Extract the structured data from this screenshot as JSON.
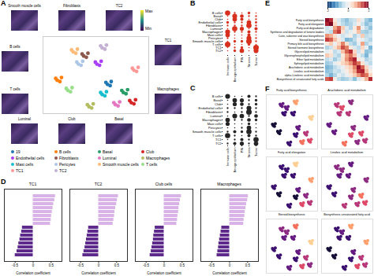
{
  "chart_data": [
    {
      "type": "scatter",
      "panel": "A",
      "tick_labels": false,
      "legend": "bottom",
      "xlim": [
        -8,
        12
      ],
      "ylim": [
        -9,
        10
      ],
      "annotations": [
        "Smooth muscle cells",
        "Fibroblasts",
        "TC2",
        "B cells",
        "T cells",
        "TC1",
        "Macrophages",
        "Luminal",
        "Club",
        "Basal"
      ],
      "colorbar": {
        "labels": [
          "Max",
          "Min"
        ]
      },
      "series": [
        {
          "name": "19",
          "color": "#1f77b4",
          "x": [
            4.9,
            3.9,
            4.7,
            4.2
          ],
          "y": [
            -1.1,
            -1.3,
            -2.1,
            -1.8
          ]
        },
        {
          "name": "B cells",
          "color": "#ff7f0e",
          "x": [
            -4.5,
            -5.6,
            -4.8,
            -5.3
          ],
          "y": [
            -0.1,
            -0.3,
            -1.1,
            -0.8
          ]
        },
        {
          "name": "Basal",
          "color": "#279e68",
          "x": [
            8.0,
            6.9,
            7.7,
            7.2
          ],
          "y": [
            -3.1,
            -3.3,
            -4.1,
            -3.8
          ]
        },
        {
          "name": "Club",
          "color": "#d62728",
          "x": [
            9.5,
            8.4,
            9.2,
            8.7
          ],
          "y": [
            -5.6,
            -5.8,
            -6.6,
            -6.3
          ]
        },
        {
          "name": "Endothelial cells",
          "color": "#aa40fc",
          "x": [
            3.0,
            1.9,
            2.7,
            2.2
          ],
          "y": [
            3.9,
            3.7,
            2.9,
            3.2
          ]
        },
        {
          "name": "Fibroblasts",
          "color": "#8c564b",
          "x": [
            0.5,
            -0.6,
            0.2,
            -0.3
          ],
          "y": [
            5.9,
            5.7,
            4.9,
            5.2
          ]
        },
        {
          "name": "Luminal",
          "color": "#e377c2",
          "x": [
            6.5,
            5.4,
            6.2,
            5.7
          ],
          "y": [
            -6.1,
            -6.3,
            -7.1,
            -6.8
          ]
        },
        {
          "name": "Macrophages",
          "color": "#b5bd61",
          "x": [
            1.5,
            0.4,
            1.2,
            0.7
          ],
          "y": [
            -6.6,
            -6.8,
            -7.6,
            -7.3
          ]
        },
        {
          "name": "Mast cells",
          "color": "#17becf",
          "x": [
            4.0,
            2.9,
            3.7,
            3.2
          ],
          "y": [
            -3.6,
            -3.8,
            -4.6,
            -4.3
          ]
        },
        {
          "name": "Pericytes",
          "color": "#aec7e8",
          "x": [
            -0.5,
            -1.6,
            -0.8,
            -1.3
          ],
          "y": [
            3.9,
            3.7,
            2.9,
            3.2
          ]
        },
        {
          "name": "Smooth muscle cells",
          "color": "#ffbb78",
          "x": [
            -1.5,
            -2.6,
            -1.8,
            -2.3
          ],
          "y": [
            6.9,
            6.7,
            5.9,
            6.2
          ]
        },
        {
          "name": "T cells",
          "color": "#98df8a",
          "x": [
            -2.5,
            -3.6,
            -2.8,
            -3.3
          ],
          "y": [
            -2.6,
            -2.8,
            -3.6,
            -3.3
          ]
        },
        {
          "name": "TC1",
          "color": "#ff9896",
          "x": [
            10.0,
            8.9,
            9.7,
            9.2
          ],
          "y": [
            2.4,
            2.2,
            1.4,
            1.7
          ]
        },
        {
          "name": "TC2",
          "color": "#c5b0d5",
          "x": [
            4.0,
            2.9,
            3.7,
            3.2
          ],
          "y": [
            7.9,
            7.7,
            6.9,
            7.2
          ]
        }
      ]
    },
    {
      "type": "dot",
      "panel": "B",
      "color": "#d7301f",
      "categories": [
        "Immune cells",
        "Benign epithelium",
        "PIN",
        "Stroma",
        "Tumor"
      ],
      "rows": [
        "B cells",
        "Basal",
        "Club",
        "Endothelial cells",
        "Fibroblasts",
        "Luminal",
        "Macrophages",
        "Mast cells",
        "Pericytes",
        "Smooth muscle cells",
        "T cells",
        "TC1",
        "TC2"
      ],
      "values": [
        [
          0.8,
          0.1,
          0.05,
          0.2,
          0.05
        ],
        [
          0.05,
          0.7,
          0.4,
          0.1,
          0.1
        ],
        [
          0.05,
          0.6,
          0.3,
          0.05,
          0.1
        ],
        [
          0.2,
          0.1,
          0.1,
          0.6,
          0.15
        ],
        [
          0.1,
          0.1,
          0.1,
          0.8,
          0.1
        ],
        [
          0.05,
          0.8,
          0.5,
          0.05,
          0.3
        ],
        [
          0.7,
          0.1,
          0.1,
          0.3,
          0.1
        ],
        [
          0.6,
          0.05,
          0.05,
          0.3,
          0.05
        ],
        [
          0.1,
          0.05,
          0.05,
          0.7,
          0.1
        ],
        [
          0.05,
          0.2,
          0.2,
          0.9,
          0.1
        ],
        [
          0.9,
          0.05,
          0.05,
          0.2,
          0.05
        ],
        [
          0.05,
          0.1,
          0.2,
          0.05,
          0.9
        ],
        [
          0.05,
          0.2,
          0.6,
          0.05,
          0.7
        ]
      ]
    },
    {
      "type": "dot",
      "panel": "C",
      "color": "#252525",
      "categories": [
        "Immune cells",
        "Benign epithelium",
        "PIN",
        "Stroma",
        "Tumor"
      ],
      "rows": [
        "B cells",
        "Basal",
        "Club",
        "Endothelial cells",
        "Fibroblasts",
        "Luminal",
        "Macrophages",
        "Mast cells",
        "Pericytes",
        "Smooth muscle cells",
        "T cells",
        "TC1",
        "TC2"
      ],
      "values": [
        [
          0.7,
          0.05,
          0.05,
          0.3,
          0.1
        ],
        [
          0.05,
          0.6,
          0.5,
          0.1,
          0.2
        ],
        [
          0.05,
          0.5,
          0.4,
          0.1,
          0.2
        ],
        [
          0.1,
          0.1,
          0.1,
          0.7,
          0.1
        ],
        [
          0.1,
          0.05,
          0.1,
          0.9,
          0.1
        ],
        [
          0.05,
          0.7,
          0.6,
          0.1,
          0.4
        ],
        [
          0.6,
          0.1,
          0.1,
          0.4,
          0.2
        ],
        [
          0.5,
          0.05,
          0.05,
          0.2,
          0.05
        ],
        [
          0.05,
          0.05,
          0.1,
          0.6,
          0.05
        ],
        [
          0.1,
          0.3,
          0.2,
          0.8,
          0.1
        ],
        [
          0.8,
          0.1,
          0.05,
          0.3,
          0.1
        ],
        [
          0.05,
          0.1,
          0.3,
          0.1,
          0.8
        ],
        [
          0.1,
          0.3,
          0.5,
          0.1,
          0.6
        ]
      ]
    },
    {
      "type": "bar",
      "panel": "D",
      "orientation": "horizontal",
      "title": "TC1",
      "xlabel": "Correlation coefficient",
      "xlim": [
        -0.8,
        0.8
      ],
      "xticks": [
        -0.5,
        0,
        0.5
      ],
      "categories": [
        null,
        null,
        null,
        null,
        null,
        null,
        null,
        null,
        null,
        null,
        null,
        null,
        null,
        null,
        null,
        null
      ],
      "values": [
        0.62,
        0.6,
        0.57,
        0.55,
        0.53,
        0.51,
        0.5,
        0.48,
        -0.3,
        -0.32,
        -0.35,
        -0.37,
        -0.4,
        -0.42,
        -0.45,
        -0.5
      ],
      "colors": [
        "#d9b3e8",
        "#d9b3e8",
        "#d9b3e8",
        "#d9b3e8",
        "#d9b3e8",
        "#d9b3e8",
        "#d9b3e8",
        "#d9b3e8",
        "#5e2b8c",
        "#5e2b8c",
        "#5e2b8c",
        "#5e2b8c",
        "#5e2b8c",
        "#5e2b8c",
        "#5e2b8c",
        "#5e2b8c"
      ]
    },
    {
      "type": "bar",
      "orientation": "horizontal",
      "title": "TC2",
      "xlabel": "Correlation coefficient",
      "xlim": [
        -0.8,
        0.8
      ],
      "xticks": [
        -0.5,
        0,
        0.5
      ],
      "categories": [
        null,
        null,
        null,
        null,
        null,
        null,
        null,
        null,
        null,
        null,
        null,
        null,
        null,
        null,
        null,
        null
      ],
      "values": [
        0.55,
        0.52,
        0.5,
        0.47,
        0.45,
        0.44,
        0.42,
        0.4,
        -0.28,
        -0.3,
        -0.32,
        -0.34,
        -0.36,
        -0.38,
        -0.41,
        -0.44
      ],
      "colors": [
        "#d9b3e8",
        "#d9b3e8",
        "#d9b3e8",
        "#d9b3e8",
        "#d9b3e8",
        "#d9b3e8",
        "#d9b3e8",
        "#d9b3e8",
        "#5e2b8c",
        "#5e2b8c",
        "#5e2b8c",
        "#5e2b8c",
        "#5e2b8c",
        "#5e2b8c",
        "#5e2b8c",
        "#5e2b8c"
      ]
    },
    {
      "type": "bar",
      "orientation": "horizontal",
      "title": "Club cells",
      "xlabel": "Correlation coefficient",
      "xlim": [
        -0.8,
        0.8
      ],
      "xticks": [
        -0.5,
        0,
        0.5
      ],
      "categories": [
        null,
        null,
        null,
        null,
        null,
        null,
        null,
        null,
        null,
        null,
        null,
        null,
        null,
        null,
        null,
        null
      ],
      "values": [
        0.48,
        0.45,
        0.43,
        0.41,
        0.4,
        0.38,
        0.37,
        0.35,
        -0.25,
        -0.27,
        -0.29,
        -0.3,
        -0.32,
        -0.34,
        -0.36,
        -0.39
      ],
      "colors": [
        "#d9b3e8",
        "#d9b3e8",
        "#d9b3e8",
        "#d9b3e8",
        "#d9b3e8",
        "#d9b3e8",
        "#d9b3e8",
        "#d9b3e8",
        "#5e2b8c",
        "#5e2b8c",
        "#5e2b8c",
        "#5e2b8c",
        "#5e2b8c",
        "#5e2b8c",
        "#5e2b8c",
        "#5e2b8c"
      ]
    },
    {
      "type": "bar",
      "orientation": "horizontal",
      "title": "Macrophages",
      "xlabel": "Correlation coefficient",
      "xlim": [
        -0.8,
        0.8
      ],
      "xticks": [
        -0.5,
        0,
        0.5
      ],
      "categories": [
        null,
        null,
        null,
        null,
        null,
        null,
        null,
        null,
        null,
        null,
        null,
        null,
        null,
        null,
        null,
        null
      ],
      "values": [
        0.52,
        0.5,
        0.47,
        0.45,
        0.43,
        0.42,
        0.4,
        0.39,
        -0.22,
        -0.24,
        -0.26,
        -0.28,
        -0.3,
        -0.31,
        -0.33,
        -0.35
      ],
      "colors": [
        "#d9b3e8",
        "#d9b3e8",
        "#d9b3e8",
        "#d9b3e8",
        "#d9b3e8",
        "#d9b3e8",
        "#d9b3e8",
        "#d9b3e8",
        "#5e2b8c",
        "#5e2b8c",
        "#5e2b8c",
        "#5e2b8c",
        "#5e2b8c",
        "#5e2b8c",
        "#5e2b8c",
        "#5e2b8c"
      ]
    },
    {
      "type": "heatmap",
      "panel": "E",
      "categories": [
        null,
        null,
        null,
        null,
        null,
        null,
        null,
        null,
        null,
        null,
        null,
        null
      ],
      "rows": [
        "Fatty acid biosynthesis",
        "Fatty acid elongation",
        "Fatty acid degradation",
        "Synthesis and degradation of ketone bodies",
        "Cutin, suberine and wax biosynthesis",
        "Steroid biosynthesis",
        "Primary bile acid biosynthesis",
        "Steroid hormone biosynthesis",
        "Glycerolipid metabolism",
        "Glycerophospholipid metabolism",
        "Ether lipid metabolism",
        "Sphingolipid metabolism",
        "Arachidonic acid metabolism",
        "Linoleic acid metabolism",
        "alpha-Linolenic acid metabolism",
        "Biosynthesis of unsaturated fatty acids"
      ],
      "values": [
        [
          1.8,
          1.5,
          0.2,
          -0.3,
          -0.6,
          -0.8,
          -0.5,
          -0.4,
          0.3,
          -0.2,
          -0.7,
          -0.9
        ],
        [
          1.6,
          1.9,
          0.4,
          -0.2,
          -0.5,
          -0.7,
          -0.6,
          -0.3,
          0.1,
          -0.4,
          -0.8,
          -0.6
        ],
        [
          -0.4,
          -0.2,
          0.8,
          1.2,
          0.5,
          -0.3,
          -0.6,
          0.2,
          0.9,
          -0.1,
          -0.5,
          -0.8
        ],
        [
          -0.3,
          -0.5,
          1.1,
          1.4,
          0.3,
          -0.4,
          -0.2,
          0.1,
          0.6,
          -0.6,
          -0.7,
          -0.5
        ],
        [
          0.9,
          0.7,
          0.3,
          -0.1,
          -0.4,
          -0.2,
          0.1,
          -0.6,
          -0.3,
          0.5,
          -0.5,
          -0.4
        ],
        [
          1.4,
          1.2,
          0.6,
          0.2,
          -0.3,
          -0.9,
          -0.8,
          -0.5,
          0.0,
          -0.2,
          -0.4,
          -0.6
        ],
        [
          0.2,
          0.5,
          -0.1,
          0.4,
          1.0,
          0.3,
          -0.5,
          -0.7,
          -0.2,
          0.8,
          -0.6,
          -0.3
        ],
        [
          -0.6,
          -0.4,
          0.3,
          0.7,
          1.3,
          1.0,
          0.2,
          -0.3,
          -0.5,
          0.4,
          -0.2,
          -0.9
        ],
        [
          -0.2,
          0.1,
          -0.5,
          -0.3,
          0.6,
          1.2,
          1.5,
          0.4,
          -0.4,
          0.2,
          -0.8,
          -0.7
        ],
        [
          0.5,
          0.3,
          -0.4,
          -0.6,
          0.2,
          0.8,
          1.1,
          0.6,
          -0.2,
          -0.5,
          -0.9,
          -0.3
        ],
        [
          -0.5,
          -0.3,
          -0.7,
          -0.4,
          0.3,
          0.9,
          1.3,
          1.6,
          0.2,
          -0.1,
          -0.6,
          -0.4
        ],
        [
          -0.7,
          -0.6,
          -0.2,
          0.1,
          0.4,
          0.6,
          0.9,
          1.4,
          1.1,
          0.3,
          -0.3,
          -0.5
        ],
        [
          -0.9,
          -0.8,
          -0.5,
          -0.3,
          -0.1,
          0.3,
          0.5,
          1.0,
          1.7,
          1.2,
          0.4,
          -0.2
        ],
        [
          -0.8,
          -0.7,
          -0.4,
          -0.5,
          -0.2,
          0.1,
          0.4,
          0.8,
          1.5,
          1.6,
          0.6,
          0.1
        ],
        [
          -0.6,
          -0.9,
          -0.6,
          -0.2,
          -0.4,
          -0.1,
          0.2,
          0.5,
          0.9,
          1.3,
          1.1,
          0.4
        ],
        [
          1.2,
          1.4,
          0.1,
          -0.5,
          -0.7,
          -0.6,
          -0.4,
          -0.8,
          -0.3,
          0.2,
          0.7,
          1.5
        ]
      ],
      "colorbar": {
        "range": [
          -2,
          2
        ],
        "ticks": [
          -2,
          0,
          2
        ]
      }
    },
    {
      "type": "scatter",
      "panel": "F",
      "tick_labels": false,
      "clim": [
        0,
        1
      ],
      "categories": [
        "19",
        "B cells",
        "Basal",
        "Club",
        "Endothelial cells",
        "Fibroblasts",
        "Luminal",
        "Macrophages",
        "Mast cells",
        "Pericytes",
        "Smooth muscle cells",
        "T cells",
        "TC1",
        "TC2"
      ],
      "series": [
        {
          "name": "Fatty acid biosynthesis",
          "values": [
            0.3,
            0.1,
            0.5,
            0.6,
            0.2,
            0.3,
            0.7,
            0.2,
            0.2,
            0.2,
            0.3,
            0.1,
            0.9,
            0.8
          ]
        },
        {
          "name": "Arachidonic acid metabolism",
          "values": [
            0.4,
            0.3,
            0.6,
            0.5,
            0.5,
            0.6,
            0.4,
            0.7,
            0.6,
            0.5,
            0.5,
            0.3,
            0.3,
            0.4
          ]
        },
        {
          "name": "Fatty acid elongation",
          "values": [
            0.3,
            0.2,
            0.4,
            0.5,
            0.2,
            0.2,
            0.6,
            0.2,
            0.1,
            0.2,
            0.2,
            0.1,
            0.8,
            0.9
          ]
        },
        {
          "name": "Linoleic acid metabolism",
          "values": [
            0.4,
            0.2,
            0.7,
            0.6,
            0.3,
            0.4,
            0.5,
            0.5,
            0.4,
            0.3,
            0.4,
            0.2,
            0.4,
            0.3
          ]
        },
        {
          "name": "Steroid biosynthesis",
          "values": [
            0.3,
            0.2,
            0.5,
            0.4,
            0.3,
            0.4,
            0.6,
            0.3,
            0.2,
            0.3,
            0.4,
            0.2,
            0.9,
            0.7
          ]
        },
        {
          "name": "Biosynthesis unsaturated fatty acid",
          "values": [
            0.3,
            0.1,
            0.5,
            0.5,
            0.2,
            0.3,
            0.6,
            0.2,
            0.2,
            0.2,
            0.2,
            0.1,
            0.8,
            0.8
          ]
        }
      ]
    }
  ]
}
